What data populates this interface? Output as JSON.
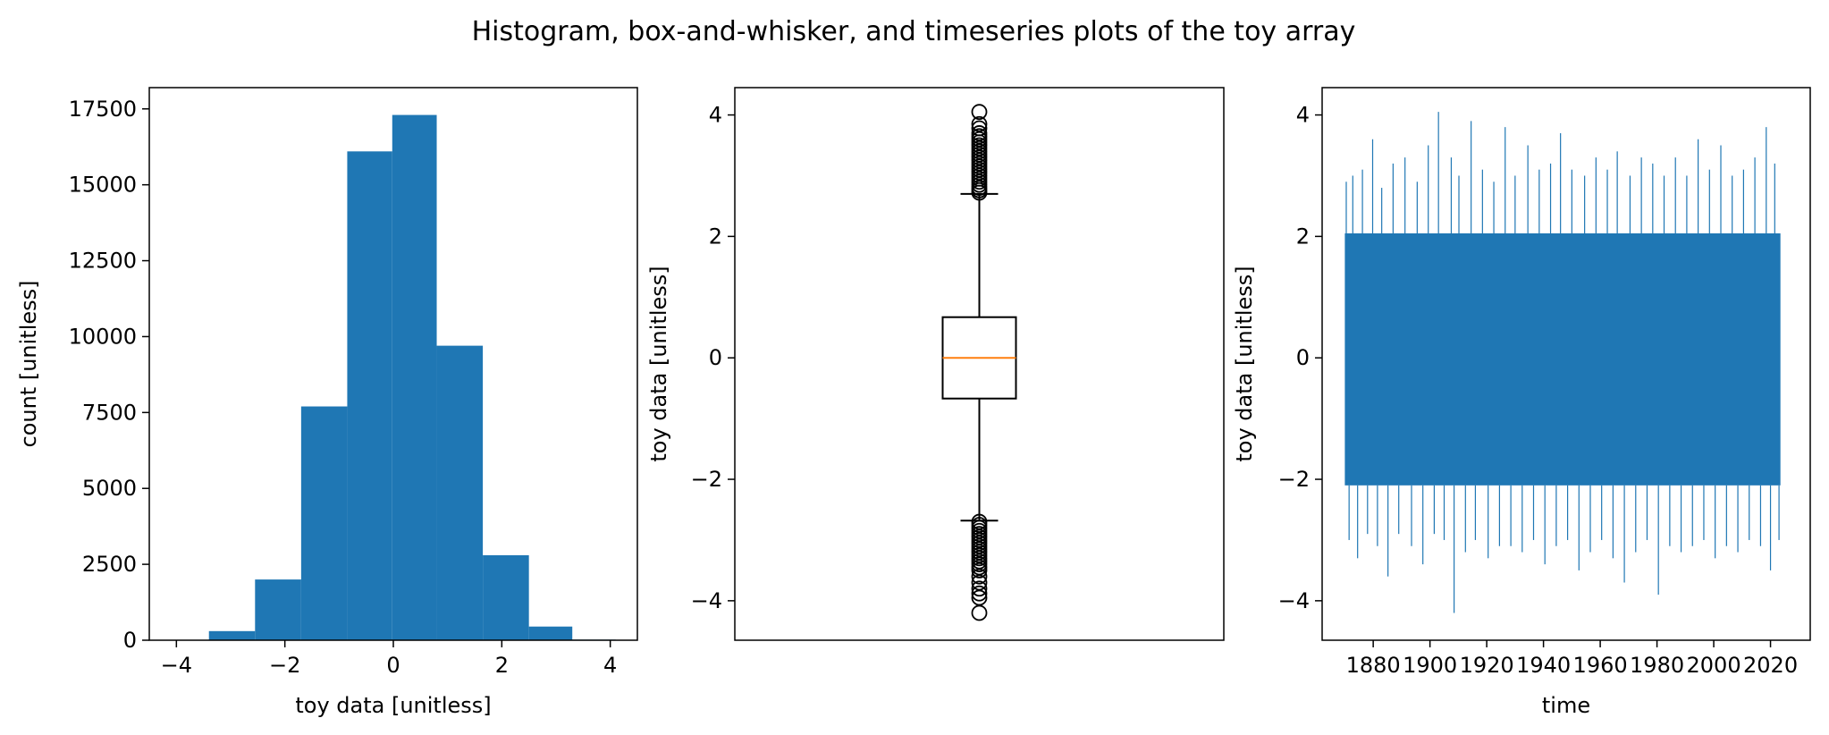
{
  "suptitle": "Histogram, box-and-whisker, and timeseries plots of the toy array",
  "colors": {
    "series": "#1f77b4",
    "median": "#ff7f0e",
    "frame": "#000000",
    "background": "#ffffff"
  },
  "chart_data": [
    {
      "type": "bar",
      "subtype": "histogram",
      "xlabel": "toy data [unitless]",
      "ylabel": "count [unitless]",
      "xlim": [
        -4.5,
        4.5
      ],
      "ylim": [
        0,
        18200
      ],
      "xticks": [
        -4,
        -2,
        0,
        2,
        4
      ],
      "xtick_labels": [
        "−4",
        "−2",
        "0",
        "2",
        "4"
      ],
      "yticks": [
        0,
        2500,
        5000,
        7500,
        10000,
        12500,
        15000,
        17500
      ],
      "ytick_labels": [
        "0",
        "2500",
        "5000",
        "7500",
        "10000",
        "12500",
        "15000",
        "17500"
      ],
      "bins": [
        {
          "x0": -4.2,
          "x1": -3.4,
          "count": 10
        },
        {
          "x0": -3.4,
          "x1": -2.55,
          "count": 300
        },
        {
          "x0": -2.55,
          "x1": -1.7,
          "count": 2000
        },
        {
          "x0": -1.7,
          "x1": -0.85,
          "count": 7700
        },
        {
          "x0": -0.85,
          "x1": -0.02,
          "count": 16100
        },
        {
          "x0": -0.02,
          "x1": 0.8,
          "count": 17300
        },
        {
          "x0": 0.8,
          "x1": 1.65,
          "count": 9700
        },
        {
          "x0": 1.65,
          "x1": 2.5,
          "count": 2800
        },
        {
          "x0": 2.5,
          "x1": 3.3,
          "count": 450
        },
        {
          "x0": 3.3,
          "x1": 4.1,
          "count": 20
        }
      ],
      "grid": false,
      "legend": "none"
    },
    {
      "type": "box",
      "ylabel": "toy data [unitless]",
      "xlabel": "",
      "ylim": [
        -4.65,
        4.45
      ],
      "yticks": [
        -4,
        -2,
        0,
        2,
        4
      ],
      "ytick_labels": [
        "−4",
        "−2",
        "0",
        "2",
        "4"
      ],
      "box": {
        "q1": -0.67,
        "median": 0.0,
        "q3": 0.67,
        "whisker_low": -2.68,
        "whisker_high": 2.7
      },
      "outliers_high": [
        2.72,
        2.76,
        2.8,
        2.85,
        2.9,
        2.95,
        3.0,
        3.05,
        3.1,
        3.15,
        3.2,
        3.25,
        3.3,
        3.35,
        3.4,
        3.45,
        3.5,
        3.55,
        3.6,
        3.65,
        3.7,
        3.78,
        3.85,
        4.05
      ],
      "outliers_low": [
        -2.7,
        -2.75,
        -2.8,
        -2.85,
        -2.9,
        -2.95,
        -3.0,
        -3.05,
        -3.1,
        -3.15,
        -3.2,
        -3.25,
        -3.3,
        -3.35,
        -3.4,
        -3.45,
        -3.5,
        -3.6,
        -3.7,
        -3.8,
        -3.88,
        -3.95,
        -4.2
      ],
      "grid": false,
      "legend": "none"
    },
    {
      "type": "line",
      "xlabel": "time",
      "ylabel": "toy data [unitless]",
      "xlim": [
        1862,
        2034
      ],
      "ylim": [
        -4.65,
        4.45
      ],
      "xticks": [
        1880,
        1900,
        1920,
        1940,
        1960,
        1980,
        2000,
        2020
      ],
      "xtick_labels": [
        "1880",
        "1900",
        "1920",
        "1940",
        "1960",
        "1980",
        "2000",
        "2020"
      ],
      "yticks": [
        -4,
        -2,
        0,
        2,
        4
      ],
      "ytick_labels": [
        "−4",
        "−2",
        "0",
        "2",
        "4"
      ],
      "x_range": [
        1870,
        2023.5
      ],
      "band": [
        -2.1,
        2.05
      ],
      "spikes": [
        [
          1870.5,
          2.9
        ],
        [
          1871.5,
          -3.0
        ],
        [
          1872.8,
          3.0
        ],
        [
          1874.5,
          -3.3
        ],
        [
          1876.2,
          3.1
        ],
        [
          1878.0,
          -2.9
        ],
        [
          1879.8,
          3.6
        ],
        [
          1881.5,
          -3.1
        ],
        [
          1883.0,
          2.8
        ],
        [
          1885.2,
          -3.6
        ],
        [
          1887.0,
          3.2
        ],
        [
          1889.0,
          -2.9
        ],
        [
          1891.2,
          3.3
        ],
        [
          1893.5,
          -3.1
        ],
        [
          1895.5,
          2.9
        ],
        [
          1897.5,
          -3.4
        ],
        [
          1899.4,
          3.5
        ],
        [
          1901.5,
          -2.9
        ],
        [
          1903.0,
          4.05
        ],
        [
          1905.0,
          -3.0
        ],
        [
          1907.5,
          3.3
        ],
        [
          1908.5,
          -4.2
        ],
        [
          1910.2,
          3.0
        ],
        [
          1912.5,
          -3.2
        ],
        [
          1914.5,
          3.9
        ],
        [
          1916.0,
          -3.0
        ],
        [
          1918.5,
          3.1
        ],
        [
          1920.5,
          -3.3
        ],
        [
          1922.5,
          2.9
        ],
        [
          1924.5,
          -3.1
        ],
        [
          1926.5,
          3.8
        ],
        [
          1928.5,
          -3.1
        ],
        [
          1930.0,
          3.0
        ],
        [
          1932.5,
          -3.2
        ],
        [
          1934.5,
          3.5
        ],
        [
          1936.5,
          -3.0
        ],
        [
          1938.5,
          3.1
        ],
        [
          1940.5,
          -3.4
        ],
        [
          1942.5,
          3.2
        ],
        [
          1944.5,
          -3.1
        ],
        [
          1946.0,
          3.7
        ],
        [
          1948.5,
          -3.0
        ],
        [
          1950.0,
          3.1
        ],
        [
          1952.5,
          -3.5
        ],
        [
          1954.5,
          3.0
        ],
        [
          1956.5,
          -3.2
        ],
        [
          1958.5,
          3.3
        ],
        [
          1960.5,
          -3.0
        ],
        [
          1962.5,
          3.1
        ],
        [
          1964.5,
          -3.3
        ],
        [
          1966.0,
          3.4
        ],
        [
          1968.5,
          -3.7
        ],
        [
          1970.5,
          3.0
        ],
        [
          1972.5,
          -3.2
        ],
        [
          1974.5,
          3.3
        ],
        [
          1976.5,
          -3.0
        ],
        [
          1978.5,
          3.2
        ],
        [
          1980.5,
          -3.9
        ],
        [
          1982.5,
          3.0
        ],
        [
          1984.5,
          -3.1
        ],
        [
          1986.5,
          3.3
        ],
        [
          1988.5,
          -3.2
        ],
        [
          1990.5,
          3.0
        ],
        [
          1992.5,
          -3.1
        ],
        [
          1994.5,
          3.6
        ],
        [
          1996.5,
          -3.0
        ],
        [
          1998.5,
          3.1
        ],
        [
          2000.5,
          -3.3
        ],
        [
          2002.5,
          3.5
        ],
        [
          2004.5,
          -3.1
        ],
        [
          2006.5,
          3.0
        ],
        [
          2008.5,
          -3.2
        ],
        [
          2010.5,
          3.1
        ],
        [
          2012.5,
          -3.0
        ],
        [
          2014.5,
          3.3
        ],
        [
          2016.5,
          -3.1
        ],
        [
          2018.5,
          3.8
        ],
        [
          2020.0,
          -3.5
        ],
        [
          2021.5,
          3.2
        ],
        [
          2023.0,
          -3.0
        ]
      ],
      "grid": false,
      "legend": "none"
    }
  ]
}
